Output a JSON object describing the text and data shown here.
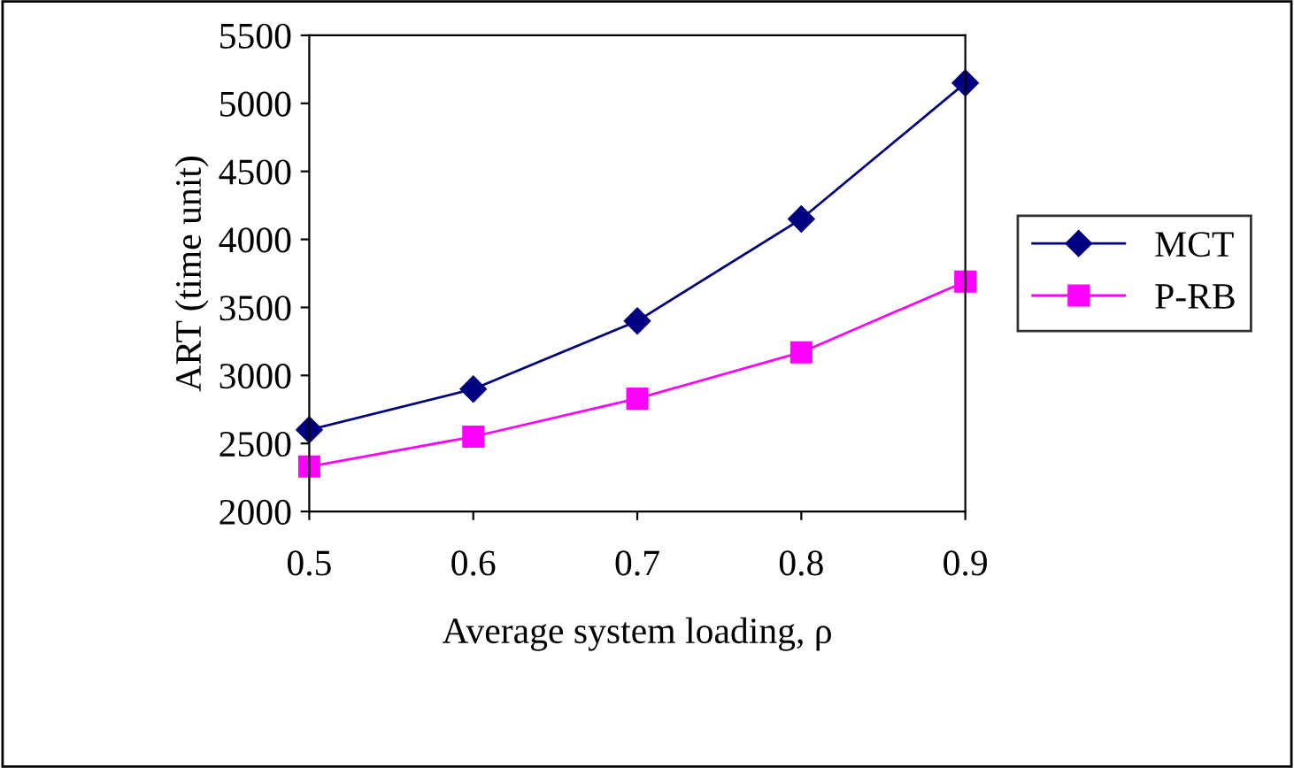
{
  "chart_data": {
    "type": "line",
    "xlabel": "Average system loading, ρ",
    "ylabel": "ART (time unit)",
    "x": [
      0.5,
      0.6,
      0.7,
      0.8,
      0.9
    ],
    "series": [
      {
        "name": "MCT",
        "color": "#000080",
        "marker": "diamond",
        "values": [
          2600,
          2900,
          3400,
          4150,
          5150
        ]
      },
      {
        "name": "P-RB",
        "color": "#ff00ff",
        "marker": "square",
        "values": [
          2330,
          2550,
          2830,
          3170,
          3690
        ]
      }
    ],
    "xlim": [
      0.5,
      0.9
    ],
    "xticks": [
      0.5,
      0.6,
      0.7,
      0.8,
      0.9
    ],
    "ylim": [
      2000,
      5500
    ],
    "yticks": [
      2000,
      2500,
      3000,
      3500,
      4000,
      4500,
      5000,
      5500
    ],
    "grid": false,
    "legend": "right",
    "line_style": "solid"
  }
}
